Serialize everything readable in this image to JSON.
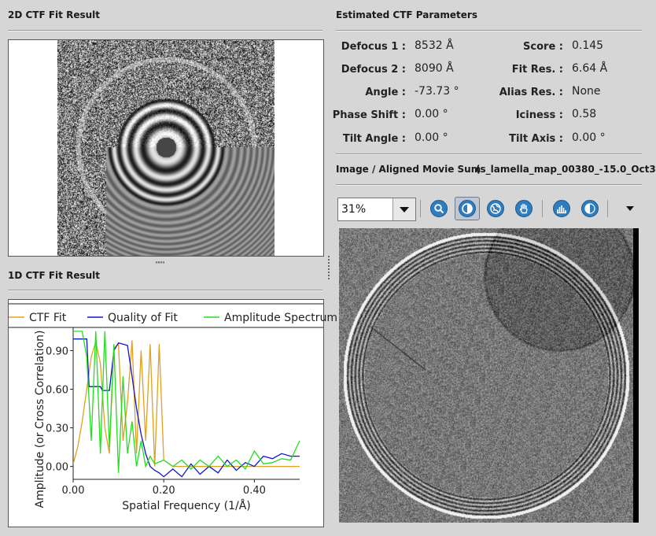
{
  "left": {
    "fit2d_title": "2D CTF Fit Result",
    "fit1d_title": "1D CTF Fit Result",
    "splitter_handle": "ˌˌˌˌˌˌˌˌ"
  },
  "params": {
    "title": "Estimated CTF Parameters",
    "rows": [
      {
        "l_label": "Defocus 1 :",
        "l_value": "8532 Å",
        "r_label": "Score :",
        "r_value": "0.145"
      },
      {
        "l_label": "Defocus 2 :",
        "l_value": "8090 Å",
        "r_label": "Fit Res. :",
        "r_value": "6.64 Å"
      },
      {
        "l_label": "Angle :",
        "l_value": "-73.73 °",
        "r_label": "Alias Res. :",
        "r_value": "None"
      },
      {
        "l_label": "Phase Shift :",
        "l_value": "0.00 °",
        "r_label": "Iciness :",
        "r_value": "0.58"
      },
      {
        "l_label": "Tilt Angle :",
        "l_value": "0.00  °",
        "r_label": "Tilt Axis :",
        "r_value": "0.00  °"
      }
    ]
  },
  "image": {
    "title": "Image / Aligned Movie Sum",
    "filename": "(s_lamella_map_00380_-15.0_Oct3",
    "zoom": "31%"
  },
  "toolbar": {
    "icons": [
      "zoom-icon",
      "contrast-icon",
      "globe-icon",
      "hand-pan-icon",
      "histogram-icon",
      "invert-contrast-icon",
      "menu-arrow-icon"
    ]
  },
  "chart_data": {
    "type": "line",
    "xlabel": "Spatial Frequency  (1/Å)",
    "ylabel": "Amplitude (or Cross Correlation)",
    "xlim": [
      0.0,
      0.5
    ],
    "ylim": [
      -0.1,
      1.08
    ],
    "x_ticks": [
      "0.00",
      "0.20",
      "0.40"
    ],
    "y_ticks": [
      "0.00",
      "0.30",
      "0.60",
      "0.90"
    ],
    "legend_position": "top",
    "colors": {
      "ctf_fit": "#e0a020",
      "quality": "#1414c8",
      "amplitude": "#22dd22"
    },
    "series": [
      {
        "name": "CTF Fit",
        "color": "#e0a020",
        "x": [
          0.0,
          0.01,
          0.02,
          0.03,
          0.04,
          0.05,
          0.06,
          0.07,
          0.08,
          0.09,
          0.1,
          0.11,
          0.12,
          0.13,
          0.14,
          0.15,
          0.16,
          0.17,
          0.18,
          0.19,
          0.2,
          0.22,
          0.24,
          0.26,
          0.28,
          0.3,
          0.32,
          0.34,
          0.36,
          0.38,
          0.4,
          0.42,
          0.44,
          0.46,
          0.48,
          0.5
        ],
        "y": [
          0.02,
          0.15,
          0.35,
          0.6,
          0.85,
          0.97,
          0.8,
          0.3,
          0.1,
          0.92,
          0.95,
          0.2,
          0.5,
          0.98,
          0.1,
          0.9,
          0.2,
          0.95,
          0.0,
          0.95,
          0.05,
          0.0,
          0.0,
          0.0,
          0.0,
          0.0,
          0.0,
          0.0,
          0.0,
          0.0,
          0.0,
          0.0,
          0.0,
          0.0,
          0.0,
          0.0
        ]
      },
      {
        "name": "Quality of Fit",
        "color": "#1414c8",
        "x": [
          0.0,
          0.02,
          0.03,
          0.035,
          0.04,
          0.06,
          0.065,
          0.08,
          0.09,
          0.1,
          0.12,
          0.13,
          0.14,
          0.15,
          0.16,
          0.17,
          0.18,
          0.19,
          0.2,
          0.22,
          0.24,
          0.26,
          0.28,
          0.3,
          0.32,
          0.34,
          0.36,
          0.38,
          0.4,
          0.42,
          0.44,
          0.46,
          0.48,
          0.5
        ],
        "y": [
          0.99,
          0.99,
          0.99,
          0.62,
          0.62,
          0.62,
          0.59,
          0.59,
          0.9,
          0.96,
          0.94,
          0.7,
          0.45,
          0.25,
          0.1,
          0.0,
          -0.03,
          -0.05,
          -0.08,
          -0.02,
          -0.08,
          0.02,
          -0.06,
          0.0,
          -0.05,
          0.05,
          -0.03,
          0.03,
          0.0,
          0.08,
          0.06,
          0.1,
          0.08,
          0.08
        ]
      },
      {
        "name": "Amplitude Spectrum",
        "color": "#22dd22",
        "x": [
          0.0,
          0.02,
          0.03,
          0.04,
          0.05,
          0.06,
          0.07,
          0.08,
          0.09,
          0.1,
          0.11,
          0.12,
          0.13,
          0.14,
          0.15,
          0.16,
          0.17,
          0.18,
          0.2,
          0.22,
          0.24,
          0.26,
          0.28,
          0.3,
          0.32,
          0.34,
          0.36,
          0.38,
          0.4,
          0.42,
          0.44,
          0.46,
          0.48,
          0.5
        ],
        "y": [
          1.05,
          1.05,
          0.85,
          0.2,
          1.05,
          0.1,
          1.05,
          0.15,
          0.95,
          -0.05,
          0.7,
          0.1,
          0.35,
          0.0,
          0.2,
          0.0,
          0.08,
          0.02,
          0.05,
          0.0,
          0.05,
          -0.02,
          0.05,
          0.0,
          0.08,
          0.0,
          0.05,
          -0.02,
          0.12,
          0.02,
          0.03,
          0.06,
          0.05,
          0.2
        ]
      }
    ]
  }
}
